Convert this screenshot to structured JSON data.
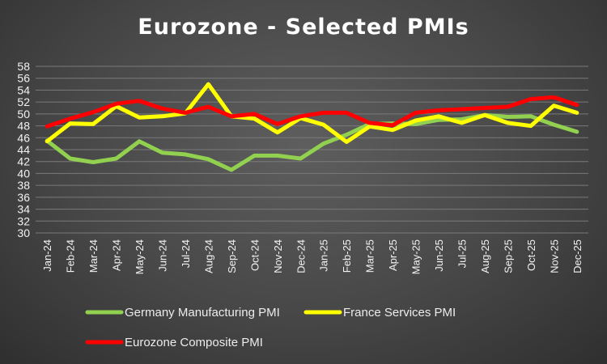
{
  "chart_data": {
    "type": "line",
    "title": "Eurozone - Selected PMIs",
    "xlabel": "",
    "ylabel": "",
    "ylim": [
      30,
      58
    ],
    "yticks": [
      30,
      32,
      34,
      36,
      38,
      40,
      42,
      44,
      46,
      48,
      50,
      52,
      54,
      56,
      58
    ],
    "grid": true,
    "legend_position": "bottom",
    "categories": [
      "Jan-24",
      "Feb-24",
      "Mar-24",
      "Apr-24",
      "May-24",
      "Jun-24",
      "Jul-24",
      "Aug-24",
      "Sep-24",
      "Oct-24",
      "Nov-24",
      "Dec-24",
      "Jan-25",
      "Feb-25",
      "Mar-25",
      "Apr-25",
      "May-25",
      "Jun-25",
      "Jul-25",
      "Aug-25",
      "Sep-25",
      "Oct-25",
      "Nov-25",
      "Dec-25"
    ],
    "series": [
      {
        "name": "Germany Manufacturing PMI",
        "color": "#92d050",
        "values": [
          45.5,
          42.5,
          41.9,
          42.5,
          45.4,
          43.5,
          43.2,
          42.4,
          40.6,
          43.0,
          43.0,
          42.5,
          45.0,
          46.5,
          48.3,
          48.4,
          48.3,
          49.0,
          49.1,
          49.8,
          49.5,
          49.6,
          48.2,
          47.0
        ]
      },
      {
        "name": "France Services PMI",
        "color": "#ffff00",
        "values": [
          45.4,
          48.4,
          48.3,
          51.3,
          49.4,
          49.6,
          50.1,
          55.0,
          49.6,
          49.2,
          46.9,
          49.3,
          48.2,
          45.3,
          47.9,
          47.3,
          48.9,
          49.6,
          48.5,
          49.8,
          48.5,
          48.0,
          51.4,
          50.2
        ]
      },
      {
        "name": "Eurozone Composite PMI",
        "color": "#ff0000",
        "values": [
          47.9,
          49.2,
          50.3,
          51.7,
          52.2,
          50.9,
          50.2,
          51.2,
          49.6,
          50.0,
          48.3,
          49.6,
          50.2,
          50.2,
          48.5,
          48.1,
          50.2,
          50.6,
          50.8,
          51.0,
          51.2,
          52.5,
          52.8,
          51.5
        ]
      }
    ]
  }
}
